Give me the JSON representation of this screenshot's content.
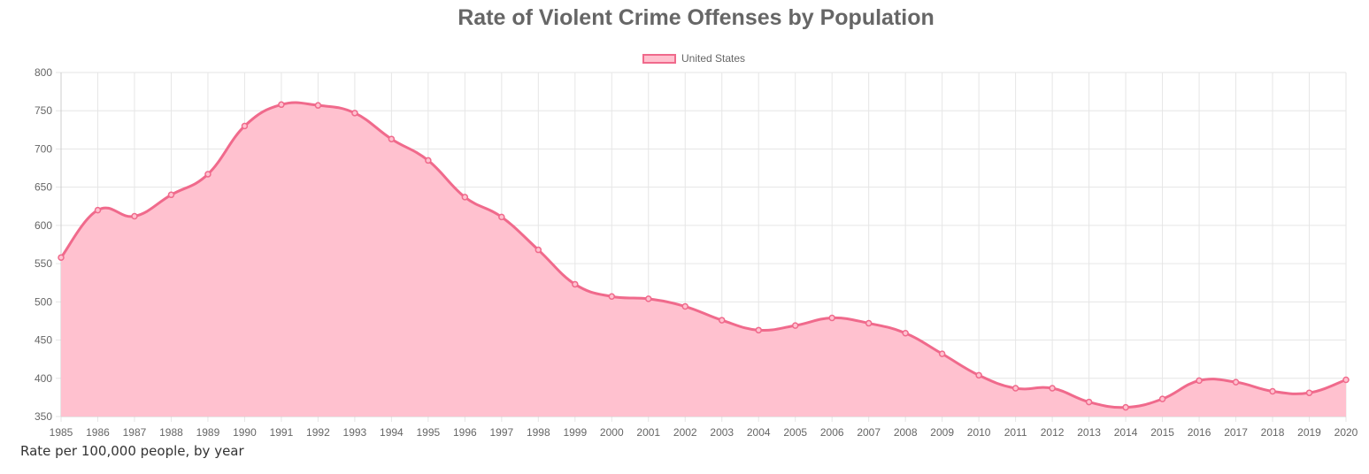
{
  "caption": "Rate per 100,000 people, by year",
  "colors": {
    "line": "#f06a8c",
    "fill": "#ffc1cf",
    "grid": "#e6e6e6",
    "text": "#666666"
  },
  "chart_data": {
    "type": "area",
    "title": "Rate of Violent Crime Offenses by Population",
    "xlabel": "",
    "ylabel": "",
    "ylim": [
      350,
      800
    ],
    "yticks": [
      350,
      400,
      450,
      500,
      550,
      600,
      650,
      700,
      750,
      800
    ],
    "grid": true,
    "legend_position": "top-center",
    "categories": [
      "1985",
      "1986",
      "1987",
      "1988",
      "1989",
      "1990",
      "1991",
      "1992",
      "1993",
      "1994",
      "1995",
      "1996",
      "1997",
      "1998",
      "1999",
      "2000",
      "2001",
      "2002",
      "2003",
      "2004",
      "2005",
      "2006",
      "2007",
      "2008",
      "2009",
      "2010",
      "2011",
      "2012",
      "2013",
      "2014",
      "2015",
      "2016",
      "2017",
      "2018",
      "2019",
      "2020"
    ],
    "series": [
      {
        "name": "United States",
        "values": [
          558,
          620,
          612,
          640,
          667,
          730,
          758,
          757,
          747,
          713,
          685,
          637,
          611,
          568,
          523,
          507,
          504,
          494,
          476,
          463,
          469,
          479,
          472,
          459,
          432,
          404,
          387,
          387,
          369,
          362,
          373,
          397,
          395,
          383,
          381,
          398
        ]
      }
    ]
  }
}
